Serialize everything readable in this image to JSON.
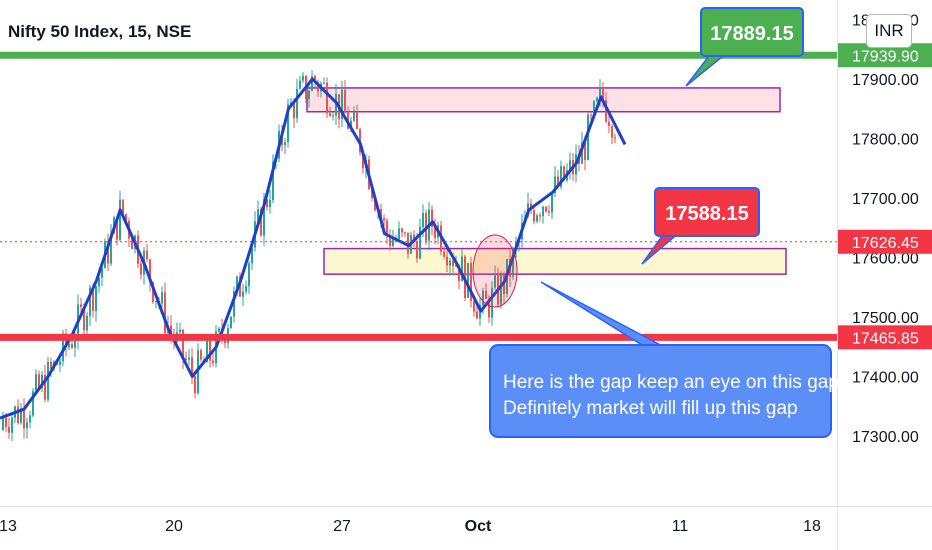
{
  "header": {
    "title": "Nifty 50 Index, 15, NSE",
    "currency": "INR"
  },
  "colors": {
    "up": "#26a69a",
    "down": "#ef5350",
    "ma": "#1e40c8",
    "resistance_line": "#4caf50",
    "support_line": "#f23645",
    "current_price": "#f23645",
    "zone_top_fill": "#fde1e6",
    "zone_top_border": "#9c27b0",
    "zone_bottom_fill": "#fdf8d0",
    "zone_bottom_border": "#9c27b0",
    "callout_green": "#4caf50",
    "callout_red": "#f23645",
    "callout_blue": "#5b8ef6"
  },
  "chart_data": {
    "type": "candlestick",
    "title": "Nifty 50 Index, 15, NSE",
    "y_axis": {
      "ticks": [
        17300,
        17400,
        17500,
        17600,
        17700,
        17800,
        17900,
        18000
      ],
      "tick_labels": [
        "17300.00",
        "17400.00",
        "17500.00",
        "17600.00",
        "17700.00",
        "17800.00",
        "17900.00",
        "18000.00"
      ],
      "range": [
        17240,
        18020
      ]
    },
    "x_axis": {
      "tick_labels": [
        "13",
        "20",
        "27",
        "Oct",
        "11",
        "18"
      ]
    },
    "moving_average_path": [
      [
        13,
        17330
      ],
      [
        14,
        17345
      ],
      [
        15,
        17400
      ],
      [
        16,
        17470
      ],
      [
        17,
        17560
      ],
      [
        18,
        17680
      ],
      [
        19,
        17590
      ],
      [
        20,
        17480
      ],
      [
        21,
        17400
      ],
      [
        22,
        17450
      ],
      [
        23,
        17560
      ],
      [
        24,
        17690
      ],
      [
        25,
        17850
      ],
      [
        26,
        17900
      ],
      [
        27,
        17860
      ],
      [
        28,
        17790
      ],
      [
        29,
        17640
      ],
      [
        30,
        17620
      ],
      [
        31,
        17660
      ],
      [
        32,
        17590
      ],
      [
        33,
        17510
      ],
      [
        34,
        17560
      ],
      [
        35,
        17680
      ],
      [
        36,
        17710
      ],
      [
        37,
        17760
      ],
      [
        38,
        17870
      ],
      [
        39,
        17790
      ]
    ],
    "levels": {
      "resistance": {
        "value": 17939.9,
        "label": "17939.90"
      },
      "support": {
        "value": 17465.85,
        "label": "17465.85"
      },
      "current": {
        "value": 17626.45,
        "label": "17626.45"
      }
    },
    "zones": [
      {
        "name": "upper-zone",
        "low": 17845,
        "high": 17885
      },
      {
        "name": "gap-zone",
        "low": 17572,
        "high": 17615
      }
    ],
    "annotations": {
      "upper": "17889.15",
      "lower": "17588.15",
      "note": [
        "Here is the gap keep an eye on this gap",
        "Definitely market will fill up this gap"
      ]
    }
  }
}
